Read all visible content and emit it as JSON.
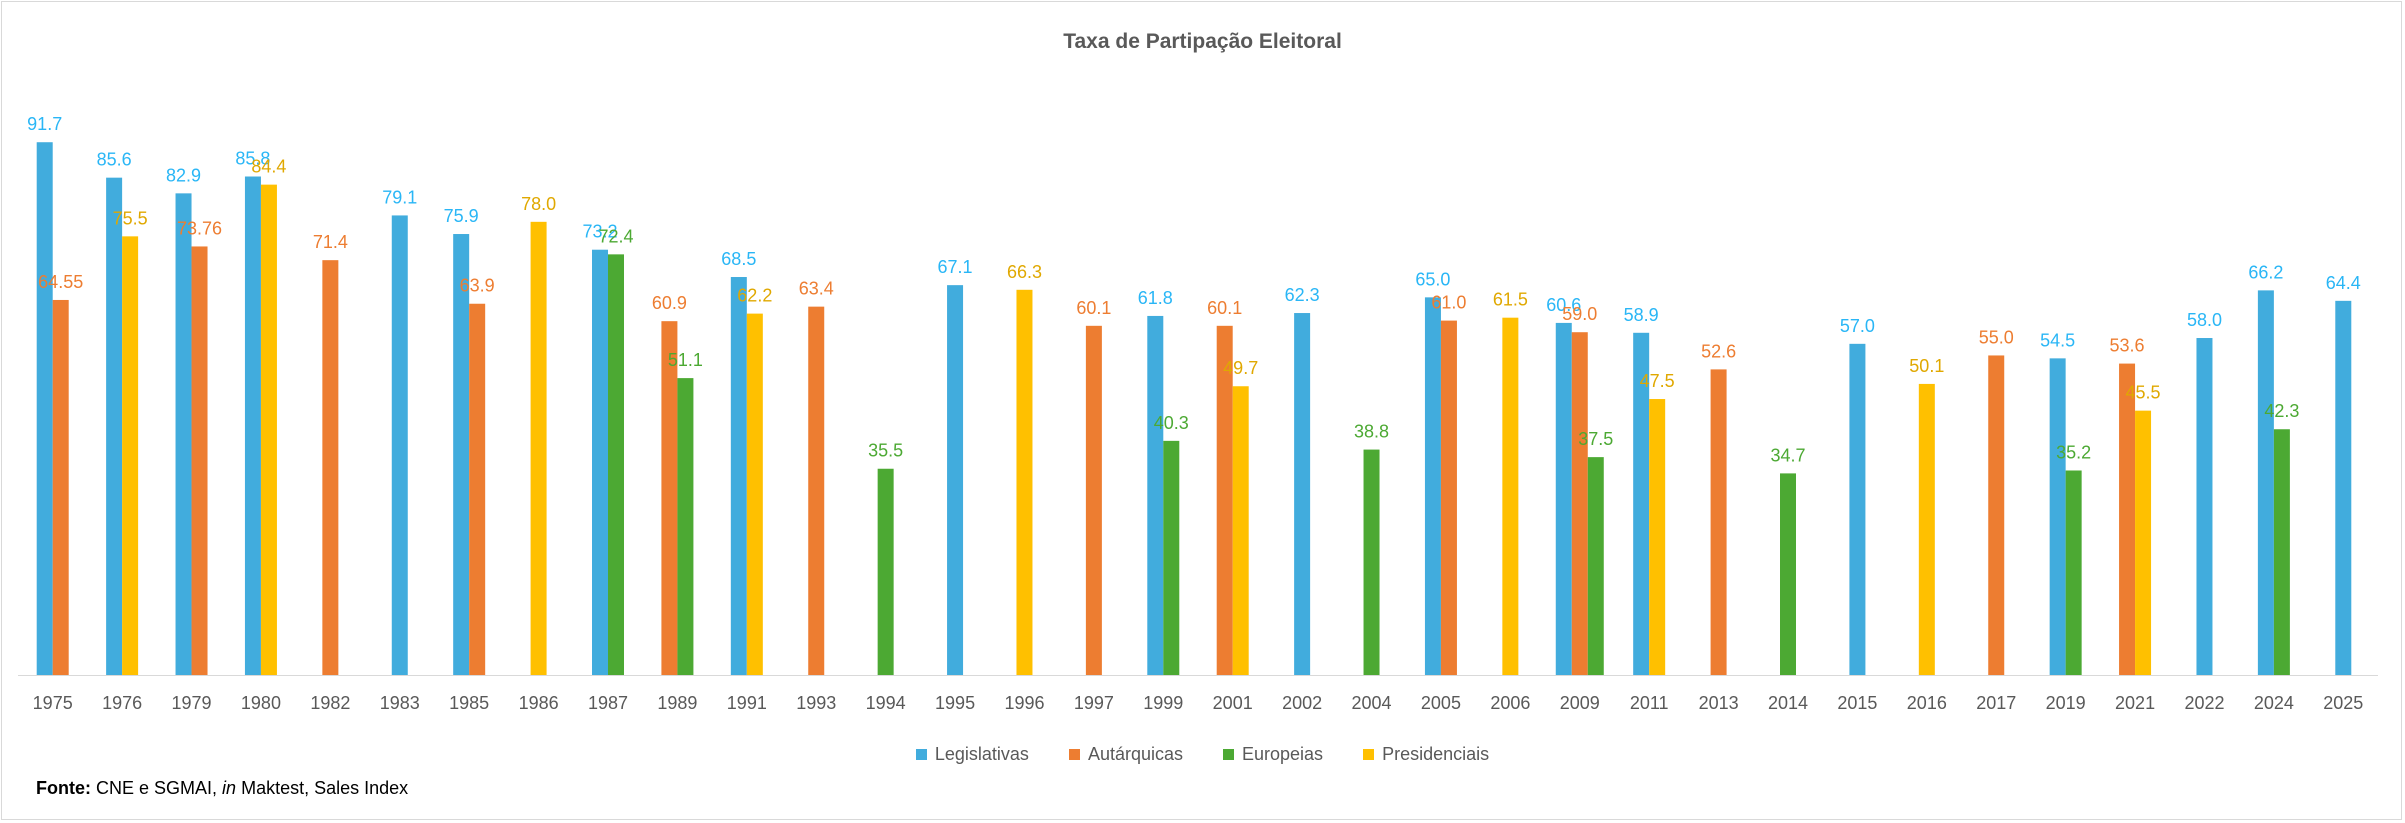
{
  "chart_data": {
    "type": "bar",
    "title": "Taxa de Partipação Eleitoral",
    "xlabel": "",
    "ylabel": "",
    "ylim": [
      0,
      100
    ],
    "grid": false,
    "legend_position": "bottom",
    "series": [
      {
        "name": "Legislativas",
        "color": "#41ACDD"
      },
      {
        "name": "Autárquicas",
        "color": "#ED7D31"
      },
      {
        "name": "Europeias",
        "color": "#4CA933"
      },
      {
        "name": "Presidenciais",
        "color": "#FFC000"
      }
    ],
    "categories": [
      {
        "label": "1975",
        "bars": [
          {
            "series": 0,
            "value": 91.7,
            "label": "91.7"
          },
          {
            "series": 1,
            "value": 64.55,
            "label": "64.55"
          }
        ]
      },
      {
        "label": "1976",
        "bars": [
          {
            "series": 0,
            "value": 85.6,
            "label": "85.6"
          },
          {
            "series": 3,
            "value": 75.5,
            "label": "75.5"
          }
        ]
      },
      {
        "label": "1979",
        "bars": [
          {
            "series": 0,
            "value": 82.9,
            "label": "82.9"
          },
          {
            "series": 1,
            "value": 73.76,
            "label": "73.76"
          }
        ]
      },
      {
        "label": "1980",
        "bars": [
          {
            "series": 0,
            "value": 85.8,
            "label": "85.8"
          },
          {
            "series": 3,
            "value": 84.4,
            "label": "84.4"
          }
        ]
      },
      {
        "label": "1982",
        "bars": [
          {
            "series": 1,
            "value": 71.4,
            "label": "71.4"
          }
        ]
      },
      {
        "label": "1983",
        "bars": [
          {
            "series": 0,
            "value": 79.1,
            "label": "79.1"
          }
        ]
      },
      {
        "label": "1985",
        "bars": [
          {
            "series": 0,
            "value": 75.9,
            "label": "75.9"
          },
          {
            "series": 1,
            "value": 63.9,
            "label": "63.9"
          }
        ]
      },
      {
        "label": "1986",
        "bars": [
          {
            "series": 3,
            "value": 78.0,
            "label": "78.0"
          }
        ]
      },
      {
        "label": "1987",
        "bars": [
          {
            "series": 0,
            "value": 73.2,
            "label": "73.2"
          },
          {
            "series": 2,
            "value": 72.4,
            "label": "72.4"
          }
        ]
      },
      {
        "label": "1989",
        "bars": [
          {
            "series": 1,
            "value": 60.9,
            "label": "60.9"
          },
          {
            "series": 2,
            "value": 51.1,
            "label": "51.1"
          }
        ]
      },
      {
        "label": "1991",
        "bars": [
          {
            "series": 0,
            "value": 68.5,
            "label": "68.5"
          },
          {
            "series": 3,
            "value": 62.2,
            "label": "62.2"
          }
        ]
      },
      {
        "label": "1993",
        "bars": [
          {
            "series": 1,
            "value": 63.4,
            "label": "63.4"
          }
        ]
      },
      {
        "label": "1994",
        "bars": [
          {
            "series": 2,
            "value": 35.5,
            "label": "35.5"
          }
        ]
      },
      {
        "label": "1995",
        "bars": [
          {
            "series": 0,
            "value": 67.1,
            "label": "67.1"
          }
        ]
      },
      {
        "label": "1996",
        "bars": [
          {
            "series": 3,
            "value": 66.3,
            "label": "66.3"
          }
        ]
      },
      {
        "label": "1997",
        "bars": [
          {
            "series": 1,
            "value": 60.1,
            "label": "60.1"
          }
        ]
      },
      {
        "label": "1999",
        "bars": [
          {
            "series": 0,
            "value": 61.8,
            "label": "61.8"
          },
          {
            "series": 2,
            "value": 40.3,
            "label": "40.3"
          }
        ]
      },
      {
        "label": "2001",
        "bars": [
          {
            "series": 1,
            "value": 60.1,
            "label": "60.1"
          },
          {
            "series": 3,
            "value": 49.7,
            "label": "49.7"
          }
        ]
      },
      {
        "label": "2002",
        "bars": [
          {
            "series": 0,
            "value": 62.3,
            "label": "62.3"
          }
        ]
      },
      {
        "label": "2004",
        "bars": [
          {
            "series": 2,
            "value": 38.8,
            "label": "38.8"
          }
        ]
      },
      {
        "label": "2005",
        "bars": [
          {
            "series": 0,
            "value": 65.0,
            "label": "65.0"
          },
          {
            "series": 1,
            "value": 61.0,
            "label": "61.0"
          }
        ]
      },
      {
        "label": "2006",
        "bars": [
          {
            "series": 3,
            "value": 61.5,
            "label": "61.5"
          }
        ]
      },
      {
        "label": "2009",
        "bars": [
          {
            "series": 0,
            "value": 60.6,
            "label": "60.6"
          },
          {
            "series": 1,
            "value": 59.0,
            "label": "59.0"
          },
          {
            "series": 2,
            "value": 37.5,
            "label": "37.5"
          }
        ]
      },
      {
        "label": "2011",
        "bars": [
          {
            "series": 0,
            "value": 58.9,
            "label": "58.9"
          },
          {
            "series": 3,
            "value": 47.5,
            "label": "47.5"
          }
        ]
      },
      {
        "label": "2013",
        "bars": [
          {
            "series": 1,
            "value": 52.6,
            "label": "52.6"
          }
        ]
      },
      {
        "label": "2014",
        "bars": [
          {
            "series": 2,
            "value": 34.7,
            "label": "34.7"
          }
        ]
      },
      {
        "label": "2015",
        "bars": [
          {
            "series": 0,
            "value": 57.0,
            "label": "57.0"
          }
        ]
      },
      {
        "label": "2016",
        "bars": [
          {
            "series": 3,
            "value": 50.1,
            "label": "50.1"
          }
        ]
      },
      {
        "label": "2017",
        "bars": [
          {
            "series": 1,
            "value": 55.0,
            "label": "55.0"
          }
        ]
      },
      {
        "label": "2019",
        "bars": [
          {
            "series": 0,
            "value": 54.5,
            "label": "54.5"
          },
          {
            "series": 2,
            "value": 35.2,
            "label": "35.2"
          }
        ]
      },
      {
        "label": "2021",
        "bars": [
          {
            "series": 1,
            "value": 53.6,
            "label": "53.6"
          },
          {
            "series": 3,
            "value": 45.5,
            "label": "45.5"
          }
        ]
      },
      {
        "label": "2022",
        "bars": [
          {
            "series": 0,
            "value": 58.0,
            "label": "58.0"
          }
        ]
      },
      {
        "label": "2024",
        "bars": [
          {
            "series": 0,
            "value": 66.2,
            "label": "66.2"
          },
          {
            "series": 2,
            "value": 42.3,
            "label": "42.3"
          }
        ]
      },
      {
        "label": "2025",
        "bars": [
          {
            "series": 0,
            "value": 64.4,
            "label": "64.4"
          }
        ]
      }
    ]
  },
  "source": {
    "label": "Fonte:",
    "text_before": "CNE e SGMAI,",
    "em": "in",
    "text_after": "Maktest, Sales Index"
  }
}
